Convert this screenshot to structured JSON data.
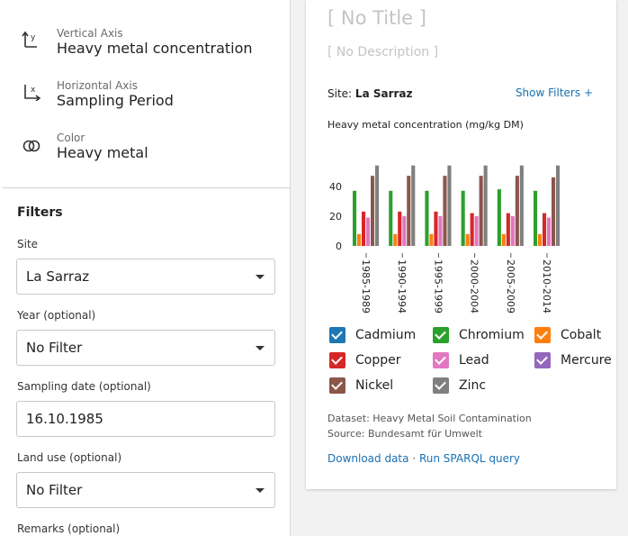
{
  "encodings": [
    {
      "kicker": "Vertical Axis",
      "value": "Heavy metal concentration",
      "icon": "vertical-axis-icon"
    },
    {
      "kicker": "Horizontal Axis",
      "value": "Sampling Period",
      "icon": "horizontal-axis-icon"
    },
    {
      "kicker": "Color",
      "value": "Heavy metal",
      "icon": "color-icon"
    }
  ],
  "filters": {
    "title": "Filters",
    "site": {
      "label": "Site",
      "value": "La Sarraz"
    },
    "year": {
      "label": "Year (optional)",
      "value": "No Filter"
    },
    "sampling_date": {
      "label": "Sampling date (optional)",
      "value": "16.10.1985"
    },
    "land_use": {
      "label": "Land use (optional)",
      "value": "No Filter"
    },
    "remarks": {
      "label": "Remarks (optional)"
    }
  },
  "card": {
    "title": "[ No Title ]",
    "description": "[ No Description ]",
    "site_label": "Site:",
    "site_value": "La Sarraz",
    "show_filters": "Show Filters",
    "show_filters_icon": "+",
    "dataset": "Dataset: Heavy Metal Soil Contamination",
    "source": "Source: Bundesamt für Umwelt",
    "download": "Download data",
    "separator": "·",
    "sparql": "Run SPARQL query"
  },
  "chart_data": {
    "type": "bar",
    "title": "Heavy metal concentration (mg/kg DM)",
    "ylim": [
      0,
      55
    ],
    "yticks": [
      0,
      20,
      40
    ],
    "categories": [
      "1985-1989",
      "1990-1994",
      "1995-1999",
      "2000-2004",
      "2005-2009",
      "2010-2014"
    ],
    "series": [
      {
        "name": "Chromium",
        "color": "#2ca02c",
        "values": [
          37,
          37,
          37,
          37,
          38,
          37
        ]
      },
      {
        "name": "Cobalt",
        "color": "#ff7f0e",
        "values": [
          8,
          8,
          8,
          8,
          8,
          8
        ]
      },
      {
        "name": "Copper",
        "color": "#d62728",
        "values": [
          23,
          23,
          23,
          22,
          22,
          22
        ]
      },
      {
        "name": "Lead",
        "color": "#e377c2",
        "values": [
          19,
          20,
          20,
          20,
          20,
          19
        ]
      },
      {
        "name": "Nickel",
        "color": "#8c564b",
        "values": [
          47,
          47,
          47,
          47,
          47,
          46
        ]
      },
      {
        "name": "Zinc",
        "color": "#7f7f7f",
        "values": [
          54,
          54,
          54,
          54,
          54,
          54
        ]
      }
    ],
    "legend": [
      {
        "name": "Cadmium",
        "color": "#1f77b4"
      },
      {
        "name": "Chromium",
        "color": "#2ca02c"
      },
      {
        "name": "Cobalt",
        "color": "#ff7f0e"
      },
      {
        "name": "Copper",
        "color": "#d62728"
      },
      {
        "name": "Lead",
        "color": "#e377c2"
      },
      {
        "name": "Mercure",
        "color": "#9467bd"
      },
      {
        "name": "Nickel",
        "color": "#8c564b"
      },
      {
        "name": "Zinc",
        "color": "#7f7f7f"
      }
    ]
  }
}
